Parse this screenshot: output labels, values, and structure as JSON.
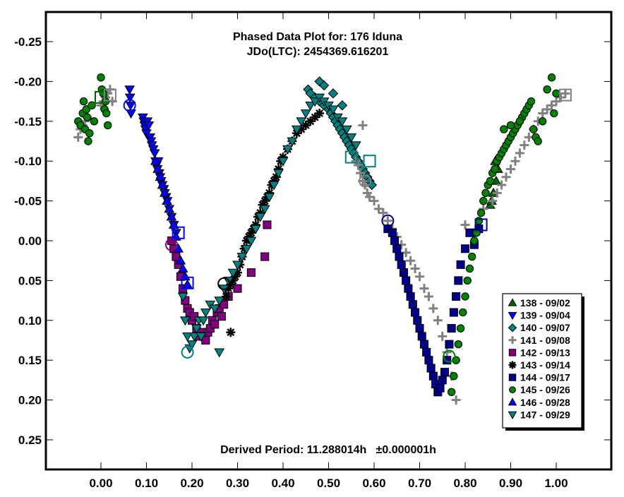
{
  "chart_data": {
    "type": "scatter",
    "title": "Phased Data Plot for: 176 Iduna",
    "subtitle": "JDo(LTC): 2454369.616201",
    "annotation": "Derived Period: 11.288014h   ±0.000001h",
    "xlabel": "",
    "ylabel": "",
    "xlim": [
      -0.12,
      1.12
    ],
    "ylim": [
      0.285,
      -0.289
    ],
    "y_inverted": true,
    "grid": false,
    "legend_position": "bottom-right",
    "x_ticks": [
      0.0,
      0.1,
      0.2,
      0.3,
      0.4,
      0.5,
      0.6,
      0.7,
      0.8,
      0.9,
      1.0
    ],
    "x_tick_labels": [
      "0.00",
      "0.10",
      "0.20",
      "0.30",
      "0.40",
      "0.50",
      "0.60",
      "0.70",
      "0.80",
      "0.90",
      "1.00"
    ],
    "y_ticks": [
      -0.25,
      -0.2,
      -0.15,
      -0.1,
      -0.05,
      0.0,
      0.05,
      0.1,
      0.15,
      0.2,
      0.25
    ],
    "y_tick_labels": [
      "-0.25",
      "-0.20",
      "-0.15",
      "-0.10",
      "-0.05",
      "0.00",
      "0.05",
      "0.10",
      "0.15",
      "0.20",
      "0.25"
    ],
    "series": [
      {
        "name": "138 - 09/02",
        "marker": "triangle-up",
        "color": "#006400",
        "x": [
          0.855,
          0.862,
          0.868,
          0.872,
          0.858,
          0.866
        ],
        "y": [
          -0.045,
          -0.06,
          -0.075,
          -0.09,
          -0.05,
          -0.1
        ]
      },
      {
        "name": "139 - 09/04",
        "marker": "triangle-down",
        "color": "#0000ff",
        "x": [
          0.063,
          0.064,
          0.065,
          0.066,
          0.092,
          0.094,
          0.096,
          0.098,
          0.1,
          0.102,
          0.105,
          0.108,
          0.11,
          0.112,
          0.115,
          0.118,
          0.12,
          0.122,
          0.124,
          0.126,
          0.128,
          0.13,
          0.132,
          0.135,
          0.138,
          0.14,
          0.143,
          0.146,
          0.15,
          0.155,
          0.16,
          0.165
        ],
        "y": [
          -0.19,
          -0.18,
          -0.17,
          -0.16,
          -0.155,
          -0.15,
          -0.145,
          -0.14,
          -0.135,
          -0.15,
          -0.145,
          -0.13,
          -0.125,
          -0.12,
          -0.115,
          -0.11,
          -0.1,
          -0.095,
          -0.09,
          -0.1,
          -0.085,
          -0.08,
          -0.075,
          -0.07,
          -0.065,
          -0.06,
          -0.055,
          -0.05,
          -0.04,
          -0.03,
          -0.02,
          -0.01
        ]
      },
      {
        "name": "140 - 09/07",
        "marker": "diamond",
        "color": "#008080",
        "x": [
          0.455,
          0.46,
          0.47,
          0.48,
          0.49,
          0.5,
          0.505,
          0.51,
          0.515,
          0.52,
          0.525,
          0.53,
          0.535,
          0.54,
          0.545,
          0.55,
          0.555,
          0.56,
          0.565,
          0.57,
          0.575,
          0.58,
          0.585,
          0.59,
          0.595,
          0.48,
          0.49,
          0.51,
          0.53
        ],
        "y": [
          -0.19,
          -0.185,
          -0.18,
          -0.175,
          -0.17,
          -0.165,
          -0.16,
          -0.155,
          -0.15,
          -0.145,
          -0.14,
          -0.135,
          -0.13,
          -0.125,
          -0.12,
          -0.115,
          -0.11,
          -0.105,
          -0.1,
          -0.095,
          -0.09,
          -0.085,
          -0.08,
          -0.075,
          -0.07,
          -0.2,
          -0.195,
          -0.185,
          -0.17
        ]
      },
      {
        "name": "141 - 09/08",
        "marker": "plus",
        "color": "#808080",
        "x": [
          -0.05,
          -0.045,
          -0.04,
          -0.035,
          -0.03,
          0.0,
          0.005,
          0.01,
          0.015,
          0.02,
          0.025,
          0.56,
          0.565,
          0.57,
          0.575,
          0.58,
          0.585,
          0.59,
          0.6,
          0.61,
          0.62,
          0.63,
          0.64,
          0.65,
          0.66,
          0.67,
          0.68,
          0.69,
          0.7,
          0.71,
          0.72,
          0.73,
          0.74,
          0.75,
          0.76,
          0.77,
          0.78,
          0.8,
          0.82,
          0.84,
          0.86,
          0.87,
          0.88,
          0.89,
          0.9,
          0.91,
          0.92,
          0.93,
          0.94,
          0.95,
          0.96,
          0.97,
          0.98,
          0.99,
          1.0,
          1.01,
          1.02,
          0.575
        ],
        "y": [
          -0.13,
          -0.14,
          -0.145,
          -0.15,
          -0.155,
          -0.17,
          -0.175,
          -0.18,
          -0.185,
          -0.19,
          -0.175,
          -0.1,
          -0.095,
          -0.085,
          -0.075,
          -0.07,
          -0.06,
          -0.055,
          -0.05,
          -0.04,
          -0.035,
          -0.025,
          -0.015,
          -0.005,
          0.005,
          0.015,
          0.025,
          0.035,
          0.045,
          0.06,
          0.07,
          0.085,
          0.1,
          0.12,
          0.14,
          0.17,
          0.2,
          -0.02,
          -0.01,
          -0.04,
          -0.05,
          -0.06,
          -0.07,
          -0.08,
          -0.09,
          -0.1,
          -0.11,
          -0.12,
          -0.13,
          -0.14,
          -0.15,
          -0.16,
          -0.165,
          -0.17,
          -0.175,
          -0.18,
          -0.185,
          -0.145
        ]
      },
      {
        "name": "142 - 09/13",
        "marker": "square",
        "color": "#800080",
        "x": [
          0.155,
          0.16,
          0.165,
          0.17,
          0.175,
          0.18,
          0.185,
          0.19,
          0.195,
          0.2,
          0.205,
          0.21,
          0.215,
          0.22,
          0.225,
          0.23,
          0.235,
          0.24,
          0.245,
          0.25,
          0.255,
          0.26,
          0.265,
          0.27,
          0.28,
          0.3,
          0.33,
          0.36,
          0.365
        ],
        "y": [
          0.0,
          0.01,
          0.02,
          0.03,
          0.045,
          0.06,
          0.075,
          0.085,
          0.09,
          0.1,
          0.095,
          0.11,
          0.12,
          0.115,
          0.12,
          0.125,
          0.115,
          0.11,
          0.1,
          0.105,
          0.09,
          0.085,
          0.095,
          0.08,
          0.07,
          0.06,
          0.04,
          0.02,
          -0.02
        ]
      },
      {
        "name": "143 - 09/14",
        "marker": "asterisk",
        "color": "#000000",
        "x": [
          0.275,
          0.28,
          0.285,
          0.29,
          0.295,
          0.3,
          0.305,
          0.31,
          0.315,
          0.32,
          0.325,
          0.33,
          0.335,
          0.34,
          0.345,
          0.35,
          0.355,
          0.36,
          0.365,
          0.37,
          0.375,
          0.38,
          0.385,
          0.39,
          0.395,
          0.4,
          0.41,
          0.42,
          0.43,
          0.44,
          0.45,
          0.46,
          0.47,
          0.48,
          0.285
        ],
        "y": [
          0.07,
          0.06,
          0.055,
          0.05,
          0.045,
          0.04,
          0.03,
          0.02,
          0.01,
          0.0,
          -0.005,
          -0.01,
          -0.015,
          -0.02,
          -0.03,
          -0.035,
          -0.045,
          -0.05,
          -0.055,
          -0.06,
          -0.07,
          -0.075,
          -0.08,
          -0.09,
          -0.1,
          -0.105,
          -0.115,
          -0.125,
          -0.135,
          -0.14,
          -0.145,
          -0.15,
          -0.155,
          -0.16,
          0.115
        ]
      },
      {
        "name": "144 - 09/17",
        "marker": "square",
        "color": "#00008b",
        "x": [
          0.63,
          0.64,
          0.645,
          0.65,
          0.655,
          0.66,
          0.665,
          0.67,
          0.675,
          0.68,
          0.685,
          0.69,
          0.695,
          0.7,
          0.705,
          0.71,
          0.715,
          0.72,
          0.725,
          0.73,
          0.735,
          0.74,
          0.745,
          0.75,
          0.755,
          0.76,
          0.765,
          0.77,
          0.775,
          0.78,
          0.785,
          0.79,
          0.8,
          0.81,
          0.82,
          0.83
        ],
        "y": [
          -0.015,
          -0.01,
          0.0,
          0.01,
          0.02,
          0.03,
          0.04,
          0.05,
          0.06,
          0.07,
          0.08,
          0.09,
          0.1,
          0.11,
          0.12,
          0.13,
          0.14,
          0.15,
          0.16,
          0.17,
          0.18,
          0.19,
          0.185,
          0.175,
          0.165,
          0.15,
          0.13,
          0.11,
          0.09,
          0.07,
          0.05,
          0.03,
          0.01,
          -0.01,
          0.005,
          -0.015
        ]
      },
      {
        "name": "145 - 09/26",
        "marker": "circle",
        "color": "#008000",
        "x": [
          -0.05,
          -0.045,
          -0.04,
          -0.038,
          -0.035,
          -0.032,
          -0.03,
          -0.028,
          -0.025,
          -0.02,
          -0.015,
          0.0,
          0.002,
          0.005,
          0.008,
          0.01,
          0.012,
          0.015,
          0.77,
          0.775,
          0.78,
          0.785,
          0.79,
          0.795,
          0.8,
          0.805,
          0.81,
          0.815,
          0.82,
          0.825,
          0.83,
          0.835,
          0.84,
          0.845,
          0.85,
          0.855,
          0.86,
          0.865,
          0.87,
          0.875,
          0.88,
          0.885,
          0.89,
          0.895,
          0.9,
          0.905,
          0.91,
          0.915,
          0.92,
          0.925,
          0.93,
          0.935,
          0.94,
          0.945,
          0.95,
          0.955,
          0.96,
          0.97,
          0.98,
          0.99,
          0.995,
          1.0,
          0.885,
          0.9,
          0.92
        ],
        "y": [
          -0.15,
          -0.145,
          -0.16,
          -0.175,
          -0.14,
          -0.165,
          -0.155,
          -0.125,
          -0.135,
          -0.17,
          -0.15,
          -0.205,
          -0.19,
          -0.185,
          -0.165,
          -0.175,
          -0.16,
          -0.145,
          0.19,
          0.17,
          0.15,
          0.13,
          0.11,
          0.09,
          0.07,
          0.05,
          0.035,
          0.02,
          0.0,
          -0.01,
          -0.025,
          -0.035,
          -0.05,
          -0.06,
          -0.07,
          -0.075,
          -0.085,
          -0.09,
          -0.1,
          -0.105,
          -0.11,
          -0.115,
          -0.12,
          -0.125,
          -0.13,
          -0.135,
          -0.14,
          -0.145,
          -0.15,
          -0.155,
          -0.16,
          -0.165,
          -0.17,
          -0.175,
          -0.14,
          -0.13,
          -0.125,
          -0.15,
          -0.19,
          -0.205,
          -0.16,
          -0.185,
          -0.14,
          -0.145,
          -0.15
        ]
      },
      {
        "name": "146 - 09/28",
        "marker": "triangle-up",
        "color": "#0000ff",
        "x": [
          0.12,
          0.125,
          0.13,
          0.135,
          0.14,
          0.145,
          0.15,
          0.155,
          0.16,
          0.165,
          0.17,
          0.175,
          0.18,
          0.185,
          0.19
        ],
        "y": [
          -0.1,
          -0.09,
          -0.08,
          -0.07,
          -0.06,
          -0.05,
          -0.04,
          -0.03,
          -0.02,
          -0.005,
          0.01,
          0.025,
          0.035,
          0.045,
          0.055
        ]
      },
      {
        "name": "147 - 09/29",
        "marker": "triangle-down",
        "color": "#008080",
        "x": [
          0.18,
          0.185,
          0.19,
          0.195,
          0.2,
          0.205,
          0.21,
          0.215,
          0.22,
          0.225,
          0.23,
          0.24,
          0.25,
          0.26,
          0.27,
          0.28,
          0.29,
          0.3,
          0.31,
          0.32,
          0.33,
          0.34,
          0.35,
          0.36,
          0.37,
          0.38,
          0.39,
          0.4,
          0.41,
          0.42,
          0.43,
          0.44,
          0.45,
          0.46,
          0.47,
          0.48,
          0.49,
          0.5,
          0.51,
          0.52,
          0.53,
          0.54,
          0.55,
          0.56,
          0.26
        ],
        "y": [
          0.07,
          0.1,
          0.12,
          0.135,
          0.13,
          0.12,
          0.11,
          0.1,
          0.12,
          0.1,
          0.09,
          0.08,
          0.085,
          0.075,
          0.06,
          0.05,
          0.04,
          0.03,
          0.02,
          0.01,
          0.0,
          -0.015,
          -0.03,
          -0.04,
          -0.055,
          -0.07,
          -0.085,
          -0.1,
          -0.115,
          -0.125,
          -0.14,
          -0.15,
          -0.16,
          -0.17,
          -0.175,
          -0.18,
          -0.175,
          -0.17,
          -0.165,
          -0.155,
          -0.15,
          -0.14,
          -0.13,
          -0.12,
          0.14
        ]
      }
    ],
    "session_start_markers": [
      {
        "series": "145 - 09/26",
        "shape": "open-square",
        "color": "#006400",
        "x": 0.0,
        "y": -0.18
      },
      {
        "series": "141 - 09/08",
        "shape": "open-square",
        "color": "#808080",
        "x": 0.02,
        "y": -0.183
      },
      {
        "series": "139 - 09/04",
        "shape": "open-circle",
        "color": "#0000ff",
        "x": 0.063,
        "y": -0.17
      },
      {
        "series": "142 - 09/13",
        "shape": "open-circle",
        "color": "#800080",
        "x": 0.155,
        "y": 0.005
      },
      {
        "series": "146 - 09/28",
        "shape": "open-square",
        "color": "#0000ff",
        "x": 0.17,
        "y": -0.01
      },
      {
        "series": "146 - 09/28",
        "shape": "open-square",
        "color": "#0000ff",
        "x": 0.19,
        "y": 0.053
      },
      {
        "series": "147 - 09/29",
        "shape": "open-circle",
        "color": "#008080",
        "x": 0.19,
        "y": 0.14
      },
      {
        "series": "143 - 09/14",
        "shape": "open-circle",
        "color": "#000000",
        "x": 0.27,
        "y": 0.054
      },
      {
        "series": "147 - 09/29",
        "shape": "open-square",
        "color": "#008080",
        "x": 0.55,
        "y": -0.105
      },
      {
        "series": "140 - 09/07",
        "shape": "open-square",
        "color": "#008080",
        "x": 0.59,
        "y": -0.1
      },
      {
        "series": "141 - 09/08",
        "shape": "open-circle",
        "color": "#808080",
        "x": 0.58,
        "y": -0.075
      },
      {
        "series": "144 - 09/17",
        "shape": "open-circle",
        "color": "#00008b",
        "x": 0.63,
        "y": -0.025
      },
      {
        "series": "145 - 09/26",
        "shape": "open-circle",
        "color": "#008000",
        "x": 0.765,
        "y": 0.145
      },
      {
        "series": "138 - 09/02",
        "shape": "open-square",
        "color": "#00008b",
        "x": 0.835,
        "y": -0.02
      },
      {
        "series": "141 - 09/08",
        "shape": "open-square",
        "color": "#808080",
        "x": 1.02,
        "y": -0.183
      }
    ]
  }
}
